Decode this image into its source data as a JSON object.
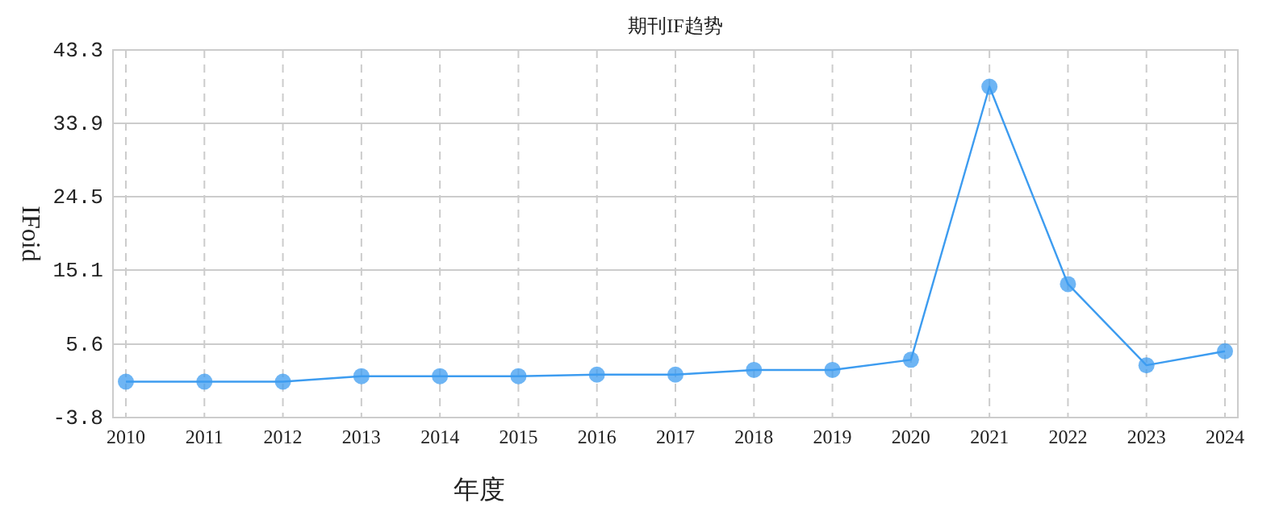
{
  "chart_data": {
    "type": "line",
    "title": "期刊IF趋势",
    "xlabel": "年度",
    "ylabel": "IFoid",
    "categories": [
      "2010",
      "2011",
      "2012",
      "2013",
      "2014",
      "2015",
      "2016",
      "2017",
      "2018",
      "2019",
      "2020",
      "2021",
      "2022",
      "2023",
      "2024"
    ],
    "series": [
      {
        "color": "#3d9cf0",
        "values": [
          0.8,
          0.8,
          0.8,
          1.5,
          1.5,
          1.5,
          1.7,
          1.7,
          2.3,
          2.3,
          3.6,
          38.6,
          13.3,
          2.9,
          4.7
        ]
      }
    ],
    "ylim": [
      -3.8,
      43.3
    ],
    "yticks": [
      -3.8,
      5.6,
      15.1,
      24.5,
      33.9,
      43.3
    ],
    "grid": true,
    "marker": "circle",
    "line_style": "solid"
  }
}
